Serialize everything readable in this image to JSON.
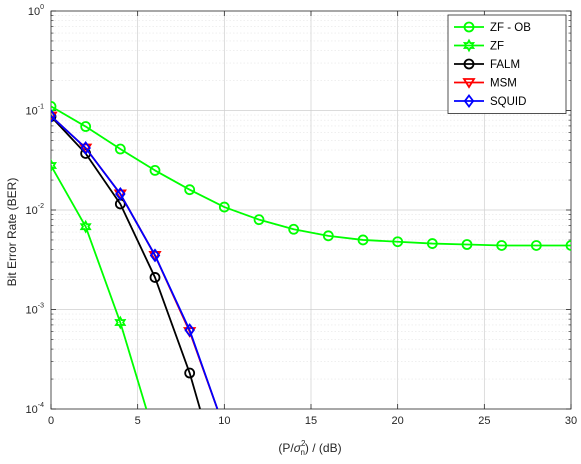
{
  "chart_data": {
    "type": "line",
    "title": "",
    "xlabel": "(P/σn2) / (dB)",
    "xlabel_parts": {
      "open": "(P/",
      "sigma": "σ",
      "sup": "2",
      "sub": "n",
      "close": ") / (dB)"
    },
    "ylabel": "Bit Error Rate (BER)",
    "xlim": [
      0,
      30
    ],
    "ylim": [
      0.0001,
      1
    ],
    "yscale": "log",
    "grid": true,
    "legend_position": "top-right",
    "x_ticks": [
      "0",
      "5",
      "10",
      "15",
      "20",
      "25",
      "30"
    ],
    "y_ticks": [
      {
        "base": "10",
        "exp": "0"
      },
      {
        "base": "10",
        "exp": "-1"
      },
      {
        "base": "10",
        "exp": "-2"
      },
      {
        "base": "10",
        "exp": "-3"
      },
      {
        "base": "10",
        "exp": "-4"
      }
    ],
    "series": [
      {
        "name": "ZF - OB",
        "color": "#00ff00",
        "marker": "circle",
        "x": [
          0,
          2,
          4,
          6,
          8,
          10,
          12,
          14,
          16,
          18,
          20,
          22,
          24,
          26,
          28,
          30
        ],
        "y": [
          0.11,
          0.069,
          0.041,
          0.025,
          0.016,
          0.0107,
          0.008,
          0.0064,
          0.0055,
          0.005,
          0.0048,
          0.0046,
          0.0045,
          0.0044,
          0.0044,
          0.0044
        ]
      },
      {
        "name": "ZF",
        "color": "#00ff00",
        "marker": "hexagram",
        "x": [
          0,
          2,
          4,
          5.5
        ],
        "y": [
          0.028,
          0.0068,
          0.00074,
          0.0001
        ]
      },
      {
        "name": "FALM",
        "color": "#000000",
        "marker": "circle",
        "x": [
          0,
          2,
          4,
          6,
          8,
          8.6
        ],
        "y": [
          0.087,
          0.037,
          0.0115,
          0.0021,
          0.00023,
          0.0001
        ]
      },
      {
        "name": "MSM",
        "color": "#ff0000",
        "marker": "triangle-down",
        "x": [
          0,
          2,
          4,
          6,
          8,
          9.6
        ],
        "y": [
          0.088,
          0.042,
          0.0145,
          0.0035,
          0.0006,
          0.0001
        ]
      },
      {
        "name": "SQUID",
        "color": "#0000ff",
        "marker": "diamond",
        "x": [
          0,
          2,
          4,
          6,
          8,
          9.6
        ],
        "y": [
          0.088,
          0.042,
          0.0145,
          0.0035,
          0.00062,
          0.0001
        ]
      }
    ]
  }
}
